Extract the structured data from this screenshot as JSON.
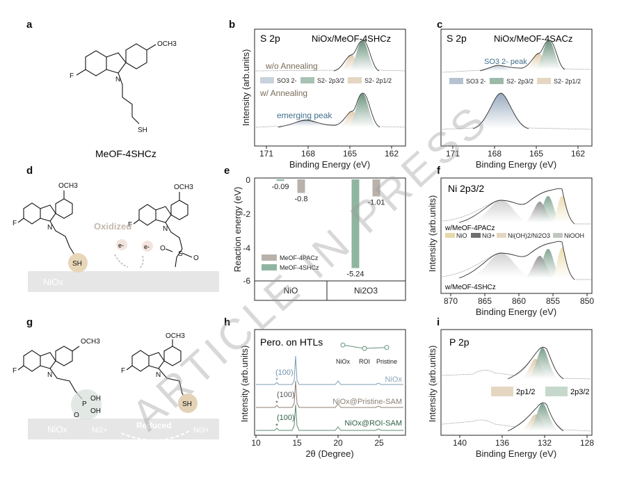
{
  "panels": {
    "a": {
      "label": "a",
      "molecule_name": "MeOF-4SHCz",
      "atoms": {
        "f": "F",
        "och3": "OCH3",
        "n": "N",
        "sh": "SH"
      }
    },
    "b": {
      "label": "b",
      "title": "S 2p",
      "sample": "NiOx/MeOF-4SHCz",
      "ylabel": "Intensity (arb.units)",
      "xlabel": "Binding Energy (eV)",
      "xticks": [
        "171",
        "168",
        "165",
        "162"
      ],
      "curve_labels": {
        "top": "w/o Annealing",
        "bottom": "w/ Annealing"
      },
      "annotation": "emerging peak",
      "legend": [
        "SO3 2-",
        "S2- 2p3/2",
        "S2- 2p1/2"
      ]
    },
    "c": {
      "label": "c",
      "title": "S 2p",
      "sample": "NiOx/MeOF-4SACz",
      "xlabel": "Binding Energy (eV)",
      "xticks": [
        "171",
        "168",
        "165",
        "162"
      ],
      "annotation": "SO3 2- peak",
      "legend": [
        "SO3 2-",
        "S2- 2p3/2",
        "S2- 2p1/2"
      ]
    },
    "d": {
      "label": "d",
      "oxidized": "Oxidized",
      "electron": "e-",
      "substrate": "NiOx",
      "atoms": {
        "f": "F",
        "och3": "OCH3",
        "n": "N",
        "sh": "SH",
        "s": "S",
        "o": "O"
      }
    },
    "e": {
      "label": "e",
      "ylabel": "Reaction energy (eV)",
      "yticks": [
        "0",
        "-2",
        "-4",
        "-6"
      ],
      "legend": [
        "MeOF-4PACz",
        "MeOF-4SHCz"
      ],
      "categories": [
        "NiO",
        "Ni2O3"
      ]
    },
    "f": {
      "label": "f",
      "title": "Ni 2p3/2",
      "ylabel": "Intensity (arb.units)",
      "xlabel": "Binding Energy (eV)",
      "xticks": [
        "870",
        "865",
        "860",
        "855",
        "850"
      ],
      "curve_labels": {
        "top": "w/MeOF-4PACz",
        "bottom": "w/MeOF-4SHCz"
      },
      "legend": [
        "NiO",
        "Ni3+",
        "Ni(OH)2/Ni2O3",
        "NiOOH"
      ]
    },
    "g": {
      "label": "g",
      "reduced": "Reduced",
      "substrate": "NiOx",
      "ni2": "Ni2+",
      "ni3": "Ni3+",
      "atoms": {
        "f": "F",
        "och3": "OCH3",
        "n": "N",
        "sh": "SH",
        "p": "P",
        "oh": "OH",
        "o": "O"
      }
    },
    "h": {
      "label": "h",
      "title": "Pero. on HTLs",
      "ylabel": "Intensity (arb.units)",
      "xlabel": "2θ (Degree)",
      "xticks": [
        "10",
        "15",
        "20",
        "25"
      ],
      "peak_label": "(100)",
      "star": "*",
      "curve_labels": [
        "NiOx",
        "NiOx@Pristine-SAM",
        "NiOx@ROI-SAM"
      ],
      "inset_labels": [
        "NiOx",
        "ROI",
        "Pristine"
      ]
    },
    "i": {
      "label": "i",
      "title": "P 2p",
      "ylabel": "Intensity (arb.units)",
      "xlabel": "Binding Energy (eV)",
      "xticks": [
        "140",
        "136",
        "132",
        "128"
      ],
      "legend": [
        "2p1/2",
        "2p3/2"
      ]
    }
  },
  "watermark": "ARTICLE IN PRESS",
  "chart_data": [
    {
      "type": "bar",
      "panel": "e",
      "title": "",
      "xlabel": "",
      "ylabel": "Reaction energy (eV)",
      "categories": [
        "NiO",
        "Ni2O3"
      ],
      "ylim": [
        -6,
        0
      ],
      "series": [
        {
          "name": "MeOF-4PACz",
          "color": "#b8b2aa",
          "values": [
            -0.8,
            -1.01
          ]
        },
        {
          "name": "MeOF-4SHCz",
          "color": "#8fb5a0",
          "values": [
            -0.09,
            -5.24
          ]
        }
      ],
      "data_labels": [
        "-0.09",
        "-0.8",
        "-5.24",
        "-1.01"
      ],
      "legend": "bottom-left"
    },
    {
      "type": "line",
      "panel": "h-inset",
      "categories": [
        "NiOx",
        "ROI",
        "Pristine"
      ],
      "values": [
        0.7,
        0.35,
        0.45
      ]
    }
  ]
}
